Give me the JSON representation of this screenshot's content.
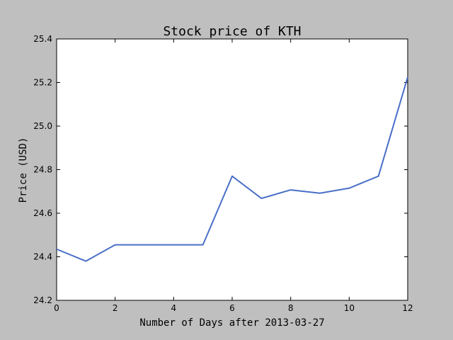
{
  "chart_data": {
    "type": "line",
    "title": "Stock price of KTH",
    "xlabel": "Number of Days after 2013-03-27",
    "ylabel": "Price (USD)",
    "xlim": [
      0,
      12
    ],
    "ylim": [
      24.2,
      25.4
    ],
    "xticks": [
      0,
      2,
      4,
      6,
      8,
      10,
      12
    ],
    "yticks": [
      24.2,
      24.4,
      24.6,
      24.8,
      25.0,
      25.2,
      25.4
    ],
    "ytick_format": 1,
    "grid": false,
    "series": [
      {
        "color": "#4a6fc7",
        "x": [
          0,
          1,
          2,
          3,
          4,
          5,
          6,
          7,
          8,
          9,
          10,
          11,
          12
        ],
        "y": [
          24.435,
          24.38,
          24.455,
          24.455,
          24.455,
          24.455,
          24.77,
          24.668,
          24.707,
          24.692,
          24.715,
          24.77,
          25.225
        ]
      }
    ]
  }
}
